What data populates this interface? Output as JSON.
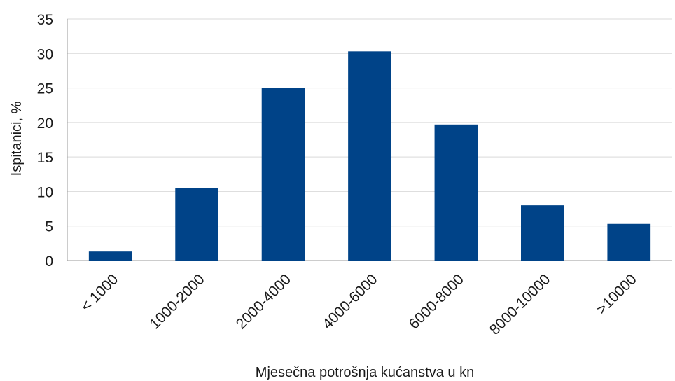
{
  "chart_data": {
    "type": "bar",
    "categories": [
      "< 1000",
      "1000-2000",
      "2000-4000",
      "4000-6000",
      "6000-8000",
      "8000-10000",
      ">10000"
    ],
    "values": [
      1.3,
      10.5,
      25.0,
      30.3,
      19.7,
      8.0,
      5.3
    ],
    "xlabel": "Mjesečna potrošnja kućanstva u kn",
    "ylabel": "Ispitanici,  %",
    "ylim": [
      0,
      35
    ],
    "yticks": [
      0,
      5,
      10,
      15,
      20,
      25,
      30,
      35
    ],
    "grid": true,
    "legend": "none",
    "bar_color": "#004388"
  }
}
